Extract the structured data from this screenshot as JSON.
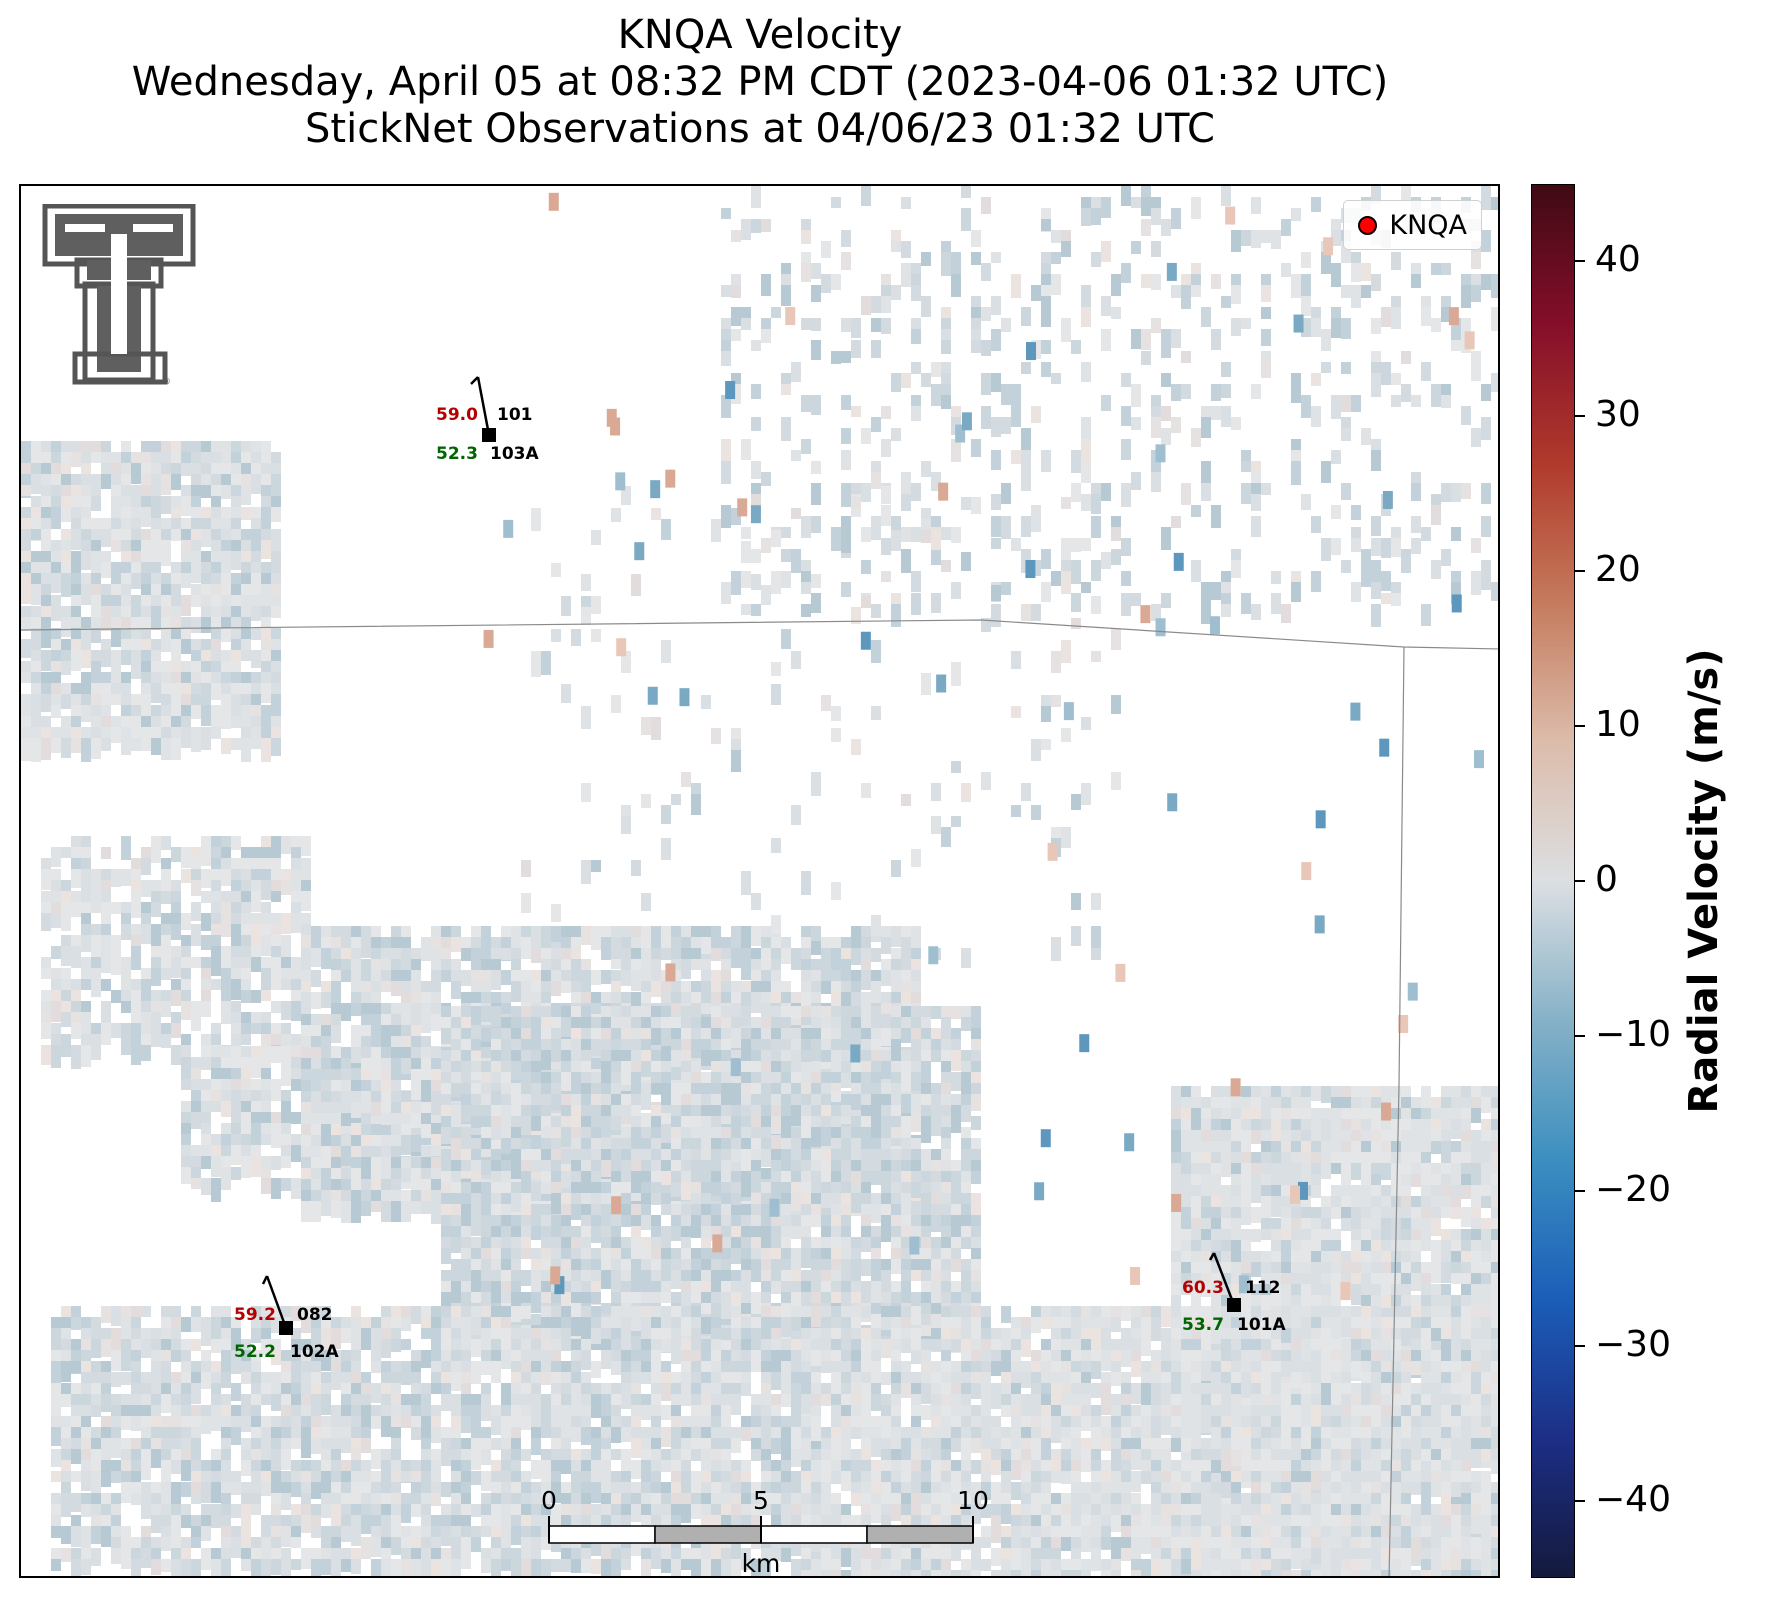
{
  "title": {
    "line1": "KNQA Velocity",
    "line2": "Wednesday, April 05 at 08:32 PM CDT (2023-04-06 01:32 UTC)",
    "line3": "StickNet Observations at 04/06/23 01:32 UTC"
  },
  "legend": {
    "label": "KNQA",
    "marker_color": "#ff0000"
  },
  "colorbar": {
    "label": "Radial Velocity (m/s)",
    "ticks": [
      "40",
      "30",
      "20",
      "10",
      "0",
      "−10",
      "−20",
      "−30",
      "−40"
    ],
    "range": [
      -45,
      45
    ],
    "colors": [
      "#141a3c",
      "#1d2e86",
      "#1b5eb8",
      "#3c8fc0",
      "#86b1c7",
      "#dcdfe2",
      "#dcbcab",
      "#c57b5d",
      "#b03a2b",
      "#850e2a",
      "#3f0a14"
    ]
  },
  "stations": [
    {
      "temp": "59.0",
      "dew": "52.3",
      "id_top": "101",
      "id_bottom": "103A"
    },
    {
      "temp": "59.2",
      "dew": "52.2",
      "id_top": "082",
      "id_bottom": "102A"
    },
    {
      "temp": "60.3",
      "dew": "53.7",
      "id_top": "112",
      "id_bottom": "101A"
    }
  ],
  "scalebar": {
    "labels": [
      "0",
      "5",
      "10"
    ],
    "unit": "km"
  },
  "logo": {
    "name": "texas-tech-double-t-logo"
  }
}
